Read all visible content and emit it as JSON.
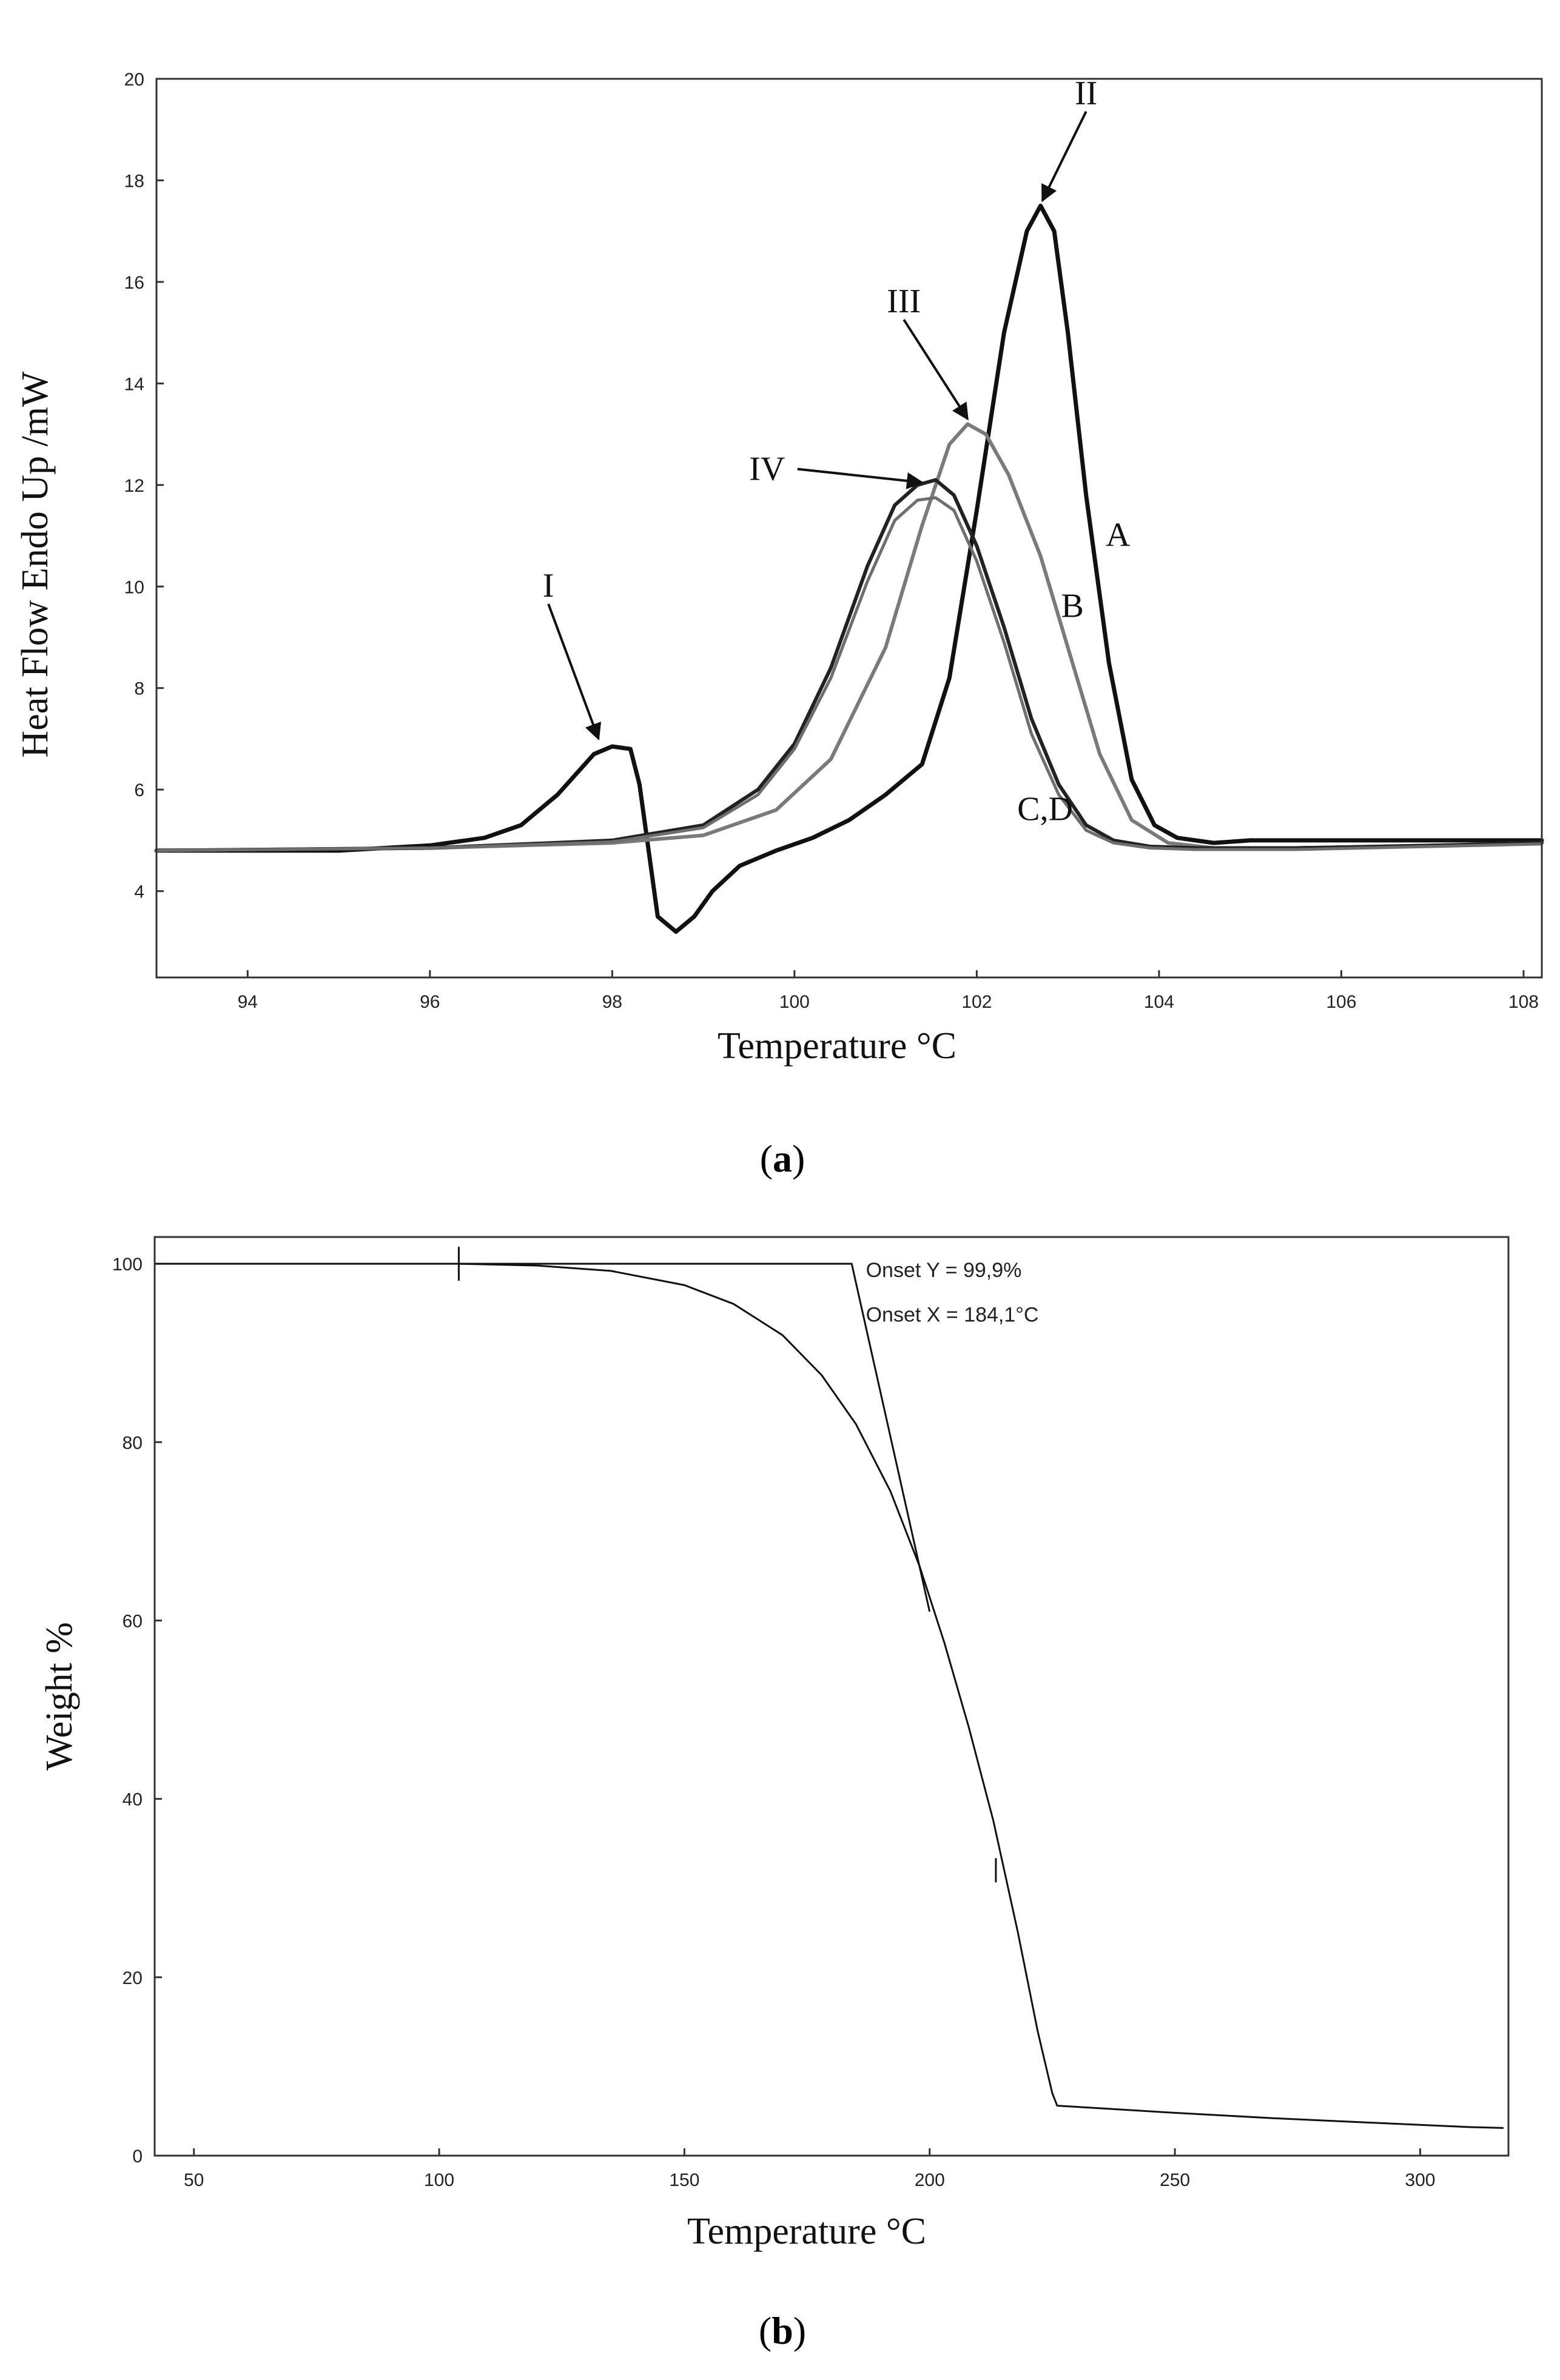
{
  "chart_data": [
    {
      "id": "a",
      "type": "line",
      "panel_label": {
        "open": "(",
        "letter": "a",
        "close": ")"
      },
      "xlabel": "Temperature °C",
      "ylabel": "Heat Flow Endo Up /mW",
      "xlim": [
        93,
        108.2
      ],
      "ylim": [
        2.3,
        20
      ],
      "xticks": [
        94,
        96,
        98,
        100,
        102,
        104,
        106,
        108
      ],
      "yticks": [
        4,
        6,
        8,
        10,
        12,
        14,
        16,
        18,
        20
      ],
      "series": [
        {
          "name": "A",
          "color": "#111111",
          "width": 7,
          "x": [
            93,
            95,
            96,
            96.6,
            97,
            97.4,
            97.8,
            98.0,
            98.2,
            98.3,
            98.5,
            98.7,
            98.9,
            99.1,
            99.4,
            99.8,
            100.2,
            100.6,
            101.0,
            101.4,
            101.7,
            102.0,
            102.3,
            102.55,
            102.7,
            102.85,
            103.0,
            103.2,
            103.45,
            103.7,
            103.95,
            104.2,
            104.6,
            105,
            106,
            107,
            108.2
          ],
          "y": [
            4.8,
            4.8,
            4.9,
            5.05,
            5.3,
            5.9,
            6.7,
            6.85,
            6.8,
            6.1,
            3.5,
            3.2,
            3.5,
            4.0,
            4.5,
            4.8,
            5.05,
            5.4,
            5.9,
            6.5,
            8.2,
            11.5,
            15.0,
            17.0,
            17.5,
            17.0,
            15.0,
            11.8,
            8.5,
            6.2,
            5.3,
            5.05,
            4.95,
            5.0,
            5.0,
            5.0,
            5.0
          ]
        },
        {
          "name": "B",
          "color": "#7a7a7a",
          "width": 6,
          "x": [
            93,
            96,
            98,
            99,
            99.8,
            100.4,
            101.0,
            101.4,
            101.7,
            101.9,
            102.1,
            102.35,
            102.7,
            103.0,
            103.35,
            103.7,
            104.1,
            104.6,
            105.5,
            107,
            108.2
          ],
          "y": [
            4.8,
            4.85,
            4.95,
            5.1,
            5.6,
            6.6,
            8.8,
            11.2,
            12.8,
            13.2,
            13.0,
            12.2,
            10.6,
            8.8,
            6.7,
            5.4,
            4.95,
            4.85,
            4.85,
            4.9,
            4.95
          ]
        },
        {
          "name": "C",
          "color": "#222222",
          "width": 6,
          "x": [
            93,
            96,
            98,
            99,
            99.6,
            100.0,
            100.4,
            100.8,
            101.1,
            101.35,
            101.55,
            101.75,
            102.0,
            102.3,
            102.6,
            102.9,
            103.2,
            103.5,
            103.9,
            104.4,
            105.5,
            107,
            108.2
          ],
          "y": [
            4.8,
            4.85,
            5.0,
            5.3,
            6.0,
            6.9,
            8.4,
            10.4,
            11.6,
            12.0,
            12.1,
            11.8,
            10.8,
            9.2,
            7.4,
            6.1,
            5.3,
            5.0,
            4.88,
            4.85,
            4.85,
            4.9,
            4.95
          ]
        },
        {
          "name": "D",
          "color": "#6e6e6e",
          "width": 5,
          "x": [
            93,
            96,
            98,
            99,
            99.6,
            100.0,
            100.4,
            100.8,
            101.1,
            101.35,
            101.55,
            101.75,
            102.0,
            102.3,
            102.6,
            102.9,
            103.2,
            103.5,
            103.9,
            104.4,
            105.5,
            107,
            108.2
          ],
          "y": [
            4.8,
            4.85,
            4.97,
            5.25,
            5.9,
            6.8,
            8.2,
            10.1,
            11.3,
            11.7,
            11.75,
            11.5,
            10.5,
            8.9,
            7.1,
            5.9,
            5.2,
            4.95,
            4.85,
            4.82,
            4.82,
            4.88,
            4.93
          ]
        }
      ],
      "annotations": [
        {
          "text": "I",
          "x": 97.3,
          "y": 9.8,
          "ax": 97.85,
          "ay": 7.0
        },
        {
          "text": "II",
          "x": 103.2,
          "y": 19.5,
          "ax": 102.72,
          "ay": 17.6
        },
        {
          "text": "III",
          "x": 101.2,
          "y": 15.4,
          "ax": 101.9,
          "ay": 13.3
        },
        {
          "text": "IV",
          "x": 99.7,
          "y": 12.1,
          "ax": 101.4,
          "ay": 12.05
        },
        {
          "text": "A",
          "x": 103.55,
          "y": 10.8,
          "ax": null,
          "ay": null
        },
        {
          "text": "B",
          "x": 103.05,
          "y": 9.4,
          "ax": null,
          "ay": null
        },
        {
          "text": "C,D",
          "x": 102.75,
          "y": 5.4,
          "ax": null,
          "ay": null
        }
      ]
    },
    {
      "id": "b",
      "type": "line",
      "panel_label": {
        "open": "(",
        "letter": "b",
        "close": ")"
      },
      "xlabel": "Temperature °C",
      "ylabel": "Weight %",
      "xlim": [
        42,
        318
      ],
      "ylim": [
        0,
        103
      ],
      "xticks": [
        50,
        100,
        150,
        200,
        250,
        300
      ],
      "yticks": [
        0,
        20,
        40,
        60,
        80,
        100
      ],
      "series": [
        {
          "name": "TGA curve",
          "color": "#111111",
          "width": 3,
          "x": [
            42,
            90,
            104,
            120,
            135,
            150,
            160,
            170,
            178,
            185,
            192,
            198,
            203,
            208,
            213,
            218,
            222,
            225,
            226,
            235,
            250,
            270,
            290,
            310,
            317
          ],
          "y": [
            100,
            100,
            100,
            99.8,
            99.2,
            97.6,
            95.5,
            92.0,
            87.5,
            82.0,
            74.5,
            66.0,
            57.5,
            48.0,
            37.5,
            25.0,
            14.0,
            7.0,
            5.6,
            5.3,
            4.8,
            4.2,
            3.7,
            3.2,
            3.1
          ]
        },
        {
          "name": "Onset tangents",
          "color": "#111111",
          "width": 3,
          "x": [
            104,
            184.1,
            200
          ],
          "y": [
            100,
            100,
            61
          ]
        }
      ],
      "marker": {
        "x": 104,
        "y": 100
      },
      "tick_mark": {
        "x": 213.5,
        "y": 32
      },
      "annotations": [
        {
          "text": "Onset Y = 99,9%",
          "x": 187,
          "y": 98.5
        },
        {
          "text": "Onset X = 184,1°C",
          "x": 187,
          "y": 93.5
        }
      ]
    }
  ]
}
